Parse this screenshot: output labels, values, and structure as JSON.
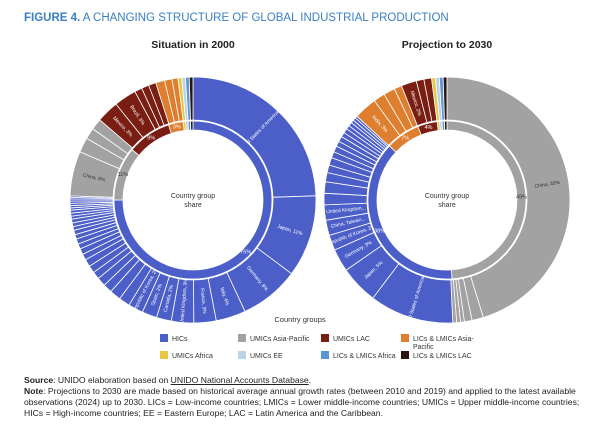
{
  "figure": {
    "number": "FIGURE 4.",
    "title": "A CHANGING STRUCTURE OF GLOBAL INDUSTRIAL PRODUCTION"
  },
  "colors": {
    "HICs": "#4c5fc9",
    "UMICs Asia-Pacific": "#a2a2a2",
    "UMICs LAC": "#7a1e14",
    "LICs & LMICs Asia-Pacific": "#dd7f2e",
    "UMICs Africa": "#e8c840",
    "UMICs EE": "#bcd2e6",
    "LICs & LMICs Africa": "#5b97d4",
    "LICs & LMICs LAC": "#2c140f"
  },
  "chart_data": [
    {
      "type": "pie",
      "title": "Situation in 2000",
      "center_label": "Country group share",
      "inner_ring": [
        {
          "group": "HICs",
          "value": 75,
          "label": "75%"
        },
        {
          "group": "UMICs Asia-Pacific",
          "value": 11,
          "label": "11%"
        },
        {
          "group": "UMICs LAC",
          "value": 9,
          "label": "9%"
        },
        {
          "group": "LICs & LMICs Asia-Pacific",
          "value": 3,
          "label": "3%"
        },
        {
          "group": "UMICs Africa",
          "value": 0.5,
          "label": ""
        },
        {
          "group": "UMICs EE",
          "value": 0.5,
          "label": ""
        },
        {
          "group": "LICs & LMICs Africa",
          "value": 0.5,
          "label": ""
        },
        {
          "group": "LICs & LMICs LAC",
          "value": 0.5,
          "label": ""
        }
      ],
      "outer_ring": [
        {
          "group": "HICs",
          "value": 25,
          "label": "United States of America, 25%"
        },
        {
          "group": "HICs",
          "value": 11,
          "label": "Japan, 11%"
        },
        {
          "group": "HICs",
          "value": 8,
          "label": "Germany, 8%"
        },
        {
          "group": "HICs",
          "value": 4,
          "label": "Italy, 4%"
        },
        {
          "group": "HICs",
          "value": 3,
          "label": "France, 3%"
        },
        {
          "group": "HICs",
          "value": 3,
          "label": "United Kingdom, 3%"
        },
        {
          "group": "HICs",
          "value": 2,
          "label": "Canada, 2%"
        },
        {
          "group": "HICs",
          "value": 2,
          "label": "Spain, 2%"
        },
        {
          "group": "HICs",
          "value": 2,
          "label": "Republic of Korea, 2%"
        },
        {
          "group": "HICs",
          "value": 1.5,
          "label": ""
        },
        {
          "group": "HICs",
          "value": 1.5,
          "label": ""
        },
        {
          "group": "HICs",
          "value": 1.2,
          "label": ""
        },
        {
          "group": "HICs",
          "value": 1.2,
          "label": ""
        },
        {
          "group": "HICs",
          "value": 1,
          "label": ""
        },
        {
          "group": "HICs",
          "value": 1,
          "label": ""
        },
        {
          "group": "HICs",
          "value": 1,
          "label": ""
        },
        {
          "group": "HICs",
          "value": 0.8,
          "label": ""
        },
        {
          "group": "HICs",
          "value": 0.8,
          "label": ""
        },
        {
          "group": "HICs",
          "value": 0.7,
          "label": ""
        },
        {
          "group": "HICs",
          "value": 0.7,
          "label": ""
        },
        {
          "group": "HICs",
          "value": 0.6,
          "label": ""
        },
        {
          "group": "HICs",
          "value": 0.6,
          "label": ""
        },
        {
          "group": "HICs",
          "value": 0.5,
          "label": ""
        },
        {
          "group": "HICs",
          "value": 0.5,
          "label": ""
        },
        {
          "group": "HICs",
          "value": 0.5,
          "label": ""
        },
        {
          "group": "HICs",
          "value": 0.4,
          "label": ""
        },
        {
          "group": "HICs",
          "value": 0.4,
          "label": ""
        },
        {
          "group": "HICs",
          "value": 0.4,
          "label": ""
        },
        {
          "group": "HICs",
          "value": 0.3,
          "label": ""
        },
        {
          "group": "HICs",
          "value": 0.3,
          "label": ""
        },
        {
          "group": "HICs",
          "value": 0.3,
          "label": ""
        },
        {
          "group": "HICs",
          "value": 0.3,
          "label": ""
        },
        {
          "group": "HICs",
          "value": 0.3,
          "label": ""
        },
        {
          "group": "HICs",
          "value": 0.2,
          "label": ""
        },
        {
          "group": "HICs",
          "value": 0.2,
          "label": ""
        },
        {
          "group": "UMICs Asia-Pacific",
          "value": 6,
          "label": "China, 6%"
        },
        {
          "group": "UMICs Asia-Pacific",
          "value": 2,
          "label": ""
        },
        {
          "group": "UMICs Asia-Pacific",
          "value": 1.5,
          "label": ""
        },
        {
          "group": "UMICs Asia-Pacific",
          "value": 1.5,
          "label": ""
        },
        {
          "group": "UMICs LAC",
          "value": 3,
          "label": "Mexico, 3%"
        },
        {
          "group": "UMICs LAC",
          "value": 3,
          "label": "Brazil, 3%"
        },
        {
          "group": "UMICs LAC",
          "value": 1,
          "label": ""
        },
        {
          "group": "UMICs LAC",
          "value": 1,
          "label": ""
        },
        {
          "group": "UMICs LAC",
          "value": 1,
          "label": ""
        },
        {
          "group": "LICs & LMICs Asia-Pacific",
          "value": 1.2,
          "label": ""
        },
        {
          "group": "LICs & LMICs Asia-Pacific",
          "value": 1,
          "label": ""
        },
        {
          "group": "LICs & LMICs Asia-Pacific",
          "value": 0.8,
          "label": ""
        },
        {
          "group": "UMICs Africa",
          "value": 0.5,
          "label": ""
        },
        {
          "group": "UMICs EE",
          "value": 0.5,
          "label": ""
        },
        {
          "group": "LICs & LMICs Africa",
          "value": 0.5,
          "label": ""
        },
        {
          "group": "LICs & LMICs LAC",
          "value": 0.5,
          "label": ""
        }
      ]
    },
    {
      "type": "pie",
      "title": "Projection to 2030",
      "center_label": "Country group share",
      "inner_ring": [
        {
          "group": "UMICs Asia-Pacific",
          "value": 49,
          "label": "49%"
        },
        {
          "group": "HICs",
          "value": 38,
          "label": "38%"
        },
        {
          "group": "LICs & LMICs Asia-Pacific",
          "value": 7,
          "label": "7%"
        },
        {
          "group": "UMICs LAC",
          "value": 4,
          "label": "4%"
        },
        {
          "group": "UMICs Africa",
          "value": 0.5,
          "label": ""
        },
        {
          "group": "UMICs EE",
          "value": 0.5,
          "label": ""
        },
        {
          "group": "LICs & LMICs Africa",
          "value": 0.5,
          "label": ""
        },
        {
          "group": "LICs & LMICs LAC",
          "value": 0.5,
          "label": ""
        }
      ],
      "outer_ring": [
        {
          "group": "UMICs Asia-Pacific",
          "value": 45,
          "label": "China, 45%"
        },
        {
          "group": "UMICs Asia-Pacific",
          "value": 1.5,
          "label": ""
        },
        {
          "group": "UMICs Asia-Pacific",
          "value": 1,
          "label": ""
        },
        {
          "group": "UMICs Asia-Pacific",
          "value": 0.5,
          "label": ""
        },
        {
          "group": "UMICs Asia-Pacific",
          "value": 0.5,
          "label": ""
        },
        {
          "group": "UMICs Asia-Pacific",
          "value": 0.5,
          "label": ""
        },
        {
          "group": "HICs",
          "value": 11,
          "label": "United States of America, 11%"
        },
        {
          "group": "HICs",
          "value": 5,
          "label": "Japan, 5%"
        },
        {
          "group": "HICs",
          "value": 3,
          "label": "Germany, 3%"
        },
        {
          "group": "HICs",
          "value": 2,
          "label": "Republic of Korea, 2%"
        },
        {
          "group": "HICs",
          "value": 2,
          "label": "China, Taiwan..."
        },
        {
          "group": "HICs",
          "value": 2,
          "label": "United Kingdom..."
        },
        {
          "group": "HICs",
          "value": 1.5,
          "label": ""
        },
        {
          "group": "HICs",
          "value": 1.5,
          "label": ""
        },
        {
          "group": "HICs",
          "value": 1.2,
          "label": ""
        },
        {
          "group": "HICs",
          "value": 1,
          "label": ""
        },
        {
          "group": "HICs",
          "value": 1,
          "label": ""
        },
        {
          "group": "HICs",
          "value": 0.8,
          "label": ""
        },
        {
          "group": "HICs",
          "value": 0.8,
          "label": ""
        },
        {
          "group": "HICs",
          "value": 0.7,
          "label": ""
        },
        {
          "group": "HICs",
          "value": 0.7,
          "label": ""
        },
        {
          "group": "HICs",
          "value": 0.6,
          "label": ""
        },
        {
          "group": "HICs",
          "value": 0.6,
          "label": ""
        },
        {
          "group": "HICs",
          "value": 0.5,
          "label": ""
        },
        {
          "group": "HICs",
          "value": 0.5,
          "label": ""
        },
        {
          "group": "HICs",
          "value": 0.4,
          "label": ""
        },
        {
          "group": "HICs",
          "value": 0.4,
          "label": ""
        },
        {
          "group": "HICs",
          "value": 0.3,
          "label": ""
        },
        {
          "group": "LICs & LMICs Asia-Pacific",
          "value": 3,
          "label": "India, 3%"
        },
        {
          "group": "LICs & LMICs Asia-Pacific",
          "value": 1.5,
          "label": ""
        },
        {
          "group": "LICs & LMICs Asia-Pacific",
          "value": 1.5,
          "label": ""
        },
        {
          "group": "LICs & LMICs Asia-Pacific",
          "value": 1,
          "label": ""
        },
        {
          "group": "UMICs LAC",
          "value": 2,
          "label": "Mexico, 2%"
        },
        {
          "group": "UMICs LAC",
          "value": 1,
          "label": ""
        },
        {
          "group": "UMICs LAC",
          "value": 1,
          "label": ""
        },
        {
          "group": "UMICs Africa",
          "value": 0.5,
          "label": ""
        },
        {
          "group": "UMICs EE",
          "value": 0.5,
          "label": ""
        },
        {
          "group": "LICs & LMICs Africa",
          "value": 0.5,
          "label": ""
        },
        {
          "group": "LICs & LMICs LAC",
          "value": 0.5,
          "label": ""
        }
      ]
    }
  ],
  "legend": {
    "title": "Country groups",
    "items": [
      "HICs",
      "UMICs Asia-Pacific",
      "UMICs LAC",
      "LICs & LMICs Asia-Pacific",
      "UMICs Africa",
      "UMICs EE",
      "LICs & LMICs Africa",
      "LICs & LMICs LAC"
    ],
    "display_lines": {
      "LICs & LMICs Asia-Pacific": [
        "LICs & LMICs Asia-",
        "Pacific"
      ]
    }
  },
  "source": {
    "label": "Source",
    "prefix": ": UNIDO elaboration based on ",
    "link": "UNIDO National Accounts Database",
    "suffix": "."
  },
  "note": {
    "label": "Note",
    "text": ": Projections to 2030 are made based on historical average annual growth rates (between 2010 and 2019) and applied to the latest available observations (2024) up to 2030. LICs = Low-income countries; LMICs = Lower middle-income countries; UMICs = Upper middle-income countries; HICs = High-income countries; EE = Eastern Europe; LAC = Latin America and the Caribbean."
  }
}
